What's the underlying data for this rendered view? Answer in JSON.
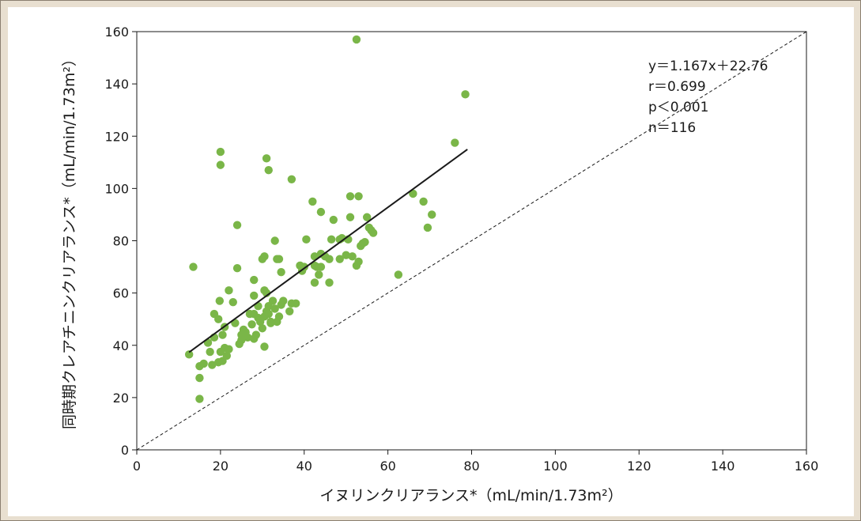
{
  "chart_data": {
    "type": "scatter",
    "xlabel": "イヌリンクリアランス*（mL/min/1.73m²）",
    "ylabel": "同時期クレアチニンクリアランス*（mL/min/1.73m²）",
    "xlim": [
      0,
      160
    ],
    "ylim": [
      0,
      160
    ],
    "xticks": [
      0,
      20,
      40,
      60,
      80,
      100,
      120,
      140,
      160
    ],
    "yticks": [
      0,
      20,
      40,
      60,
      80,
      100,
      120,
      140,
      160
    ],
    "grid": false,
    "point_color": "#7ab648",
    "annotations": [
      "y＝1.167x＋22.76",
      "r＝0.699",
      "p＜0.001",
      "n＝116"
    ],
    "regression": {
      "slope": 1.167,
      "intercept": 22.76,
      "x_range": [
        12.5,
        79
      ]
    },
    "identity_line": {
      "style": "dashed",
      "from": [
        0,
        0
      ],
      "to": [
        160,
        160
      ]
    },
    "points": [
      [
        12.5,
        36.5
      ],
      [
        13.5,
        70
      ],
      [
        15,
        19.5
      ],
      [
        15,
        27.5
      ],
      [
        15,
        32
      ],
      [
        16,
        33
      ],
      [
        17,
        41
      ],
      [
        17.5,
        37.5
      ],
      [
        18,
        32.5
      ],
      [
        18.5,
        43
      ],
      [
        18.5,
        52
      ],
      [
        19.5,
        50
      ],
      [
        19.5,
        33.5
      ],
      [
        19.8,
        57
      ],
      [
        20,
        114
      ],
      [
        20,
        109
      ],
      [
        20,
        37.5
      ],
      [
        20.5,
        44
      ],
      [
        20.5,
        34
      ],
      [
        21,
        39
      ],
      [
        21,
        47
      ],
      [
        21.5,
        36
      ],
      [
        22,
        61
      ],
      [
        22,
        38.5
      ],
      [
        23,
        56.5
      ],
      [
        23.5,
        48.5
      ],
      [
        24,
        86
      ],
      [
        24,
        69.5
      ],
      [
        24.5,
        40.5
      ],
      [
        25,
        42
      ],
      [
        25,
        44
      ],
      [
        25.5,
        46
      ],
      [
        26,
        45
      ],
      [
        26.5,
        43
      ],
      [
        27,
        52
      ],
      [
        27.5,
        48
      ],
      [
        28,
        42.5
      ],
      [
        28,
        59
      ],
      [
        28,
        65
      ],
      [
        28.5,
        44
      ],
      [
        29,
        50.5
      ],
      [
        29,
        55
      ],
      [
        29.5,
        49
      ],
      [
        30,
        46.5
      ],
      [
        30,
        73
      ],
      [
        30.5,
        74
      ],
      [
        30.5,
        61
      ],
      [
        30.5,
        39.5
      ],
      [
        30.5,
        51
      ],
      [
        31,
        111.5
      ],
      [
        31,
        60
      ],
      [
        31,
        53
      ],
      [
        31.5,
        52
      ],
      [
        31.5,
        107
      ],
      [
        31.5,
        55
      ],
      [
        32,
        49
      ],
      [
        32,
        48.5
      ],
      [
        32.5,
        57
      ],
      [
        33,
        80
      ],
      [
        33,
        54
      ],
      [
        33.5,
        49
      ],
      [
        33.5,
        73
      ],
      [
        34,
        51
      ],
      [
        34,
        73
      ],
      [
        34.5,
        55.5
      ],
      [
        34.5,
        68
      ],
      [
        35,
        57
      ],
      [
        36.5,
        53
      ],
      [
        37,
        103.5
      ],
      [
        37,
        56
      ],
      [
        38,
        56
      ],
      [
        39,
        70.5
      ],
      [
        39.5,
        68.5
      ],
      [
        40,
        70
      ],
      [
        40.5,
        80.5
      ],
      [
        42,
        95
      ],
      [
        42.5,
        74
      ],
      [
        42.5,
        64
      ],
      [
        43,
        70
      ],
      [
        43.5,
        67
      ],
      [
        44,
        91
      ],
      [
        44,
        75
      ],
      [
        44,
        70
      ],
      [
        45,
        74
      ],
      [
        46,
        64
      ],
      [
        46,
        73
      ],
      [
        46.5,
        80.5
      ],
      [
        47,
        88
      ],
      [
        48.5,
        73
      ],
      [
        48.5,
        80.5
      ],
      [
        49,
        81
      ],
      [
        50,
        74.5
      ],
      [
        50.5,
        80.5
      ],
      [
        51,
        97
      ],
      [
        51,
        89
      ],
      [
        51.5,
        74
      ],
      [
        52.5,
        70.5
      ],
      [
        53,
        97
      ],
      [
        53,
        72
      ],
      [
        53.5,
        78
      ],
      [
        54,
        79
      ],
      [
        54.5,
        79.5
      ],
      [
        55,
        89
      ],
      [
        55.5,
        85
      ],
      [
        56,
        84
      ],
      [
        56.5,
        83
      ],
      [
        52.5,
        157
      ],
      [
        62.5,
        67
      ],
      [
        66,
        98
      ],
      [
        68.5,
        95
      ],
      [
        69.5,
        85
      ],
      [
        70.5,
        90
      ],
      [
        76,
        117.5
      ],
      [
        78.5,
        136
      ],
      [
        42.5,
        70.5
      ],
      [
        28,
        52
      ]
    ]
  }
}
